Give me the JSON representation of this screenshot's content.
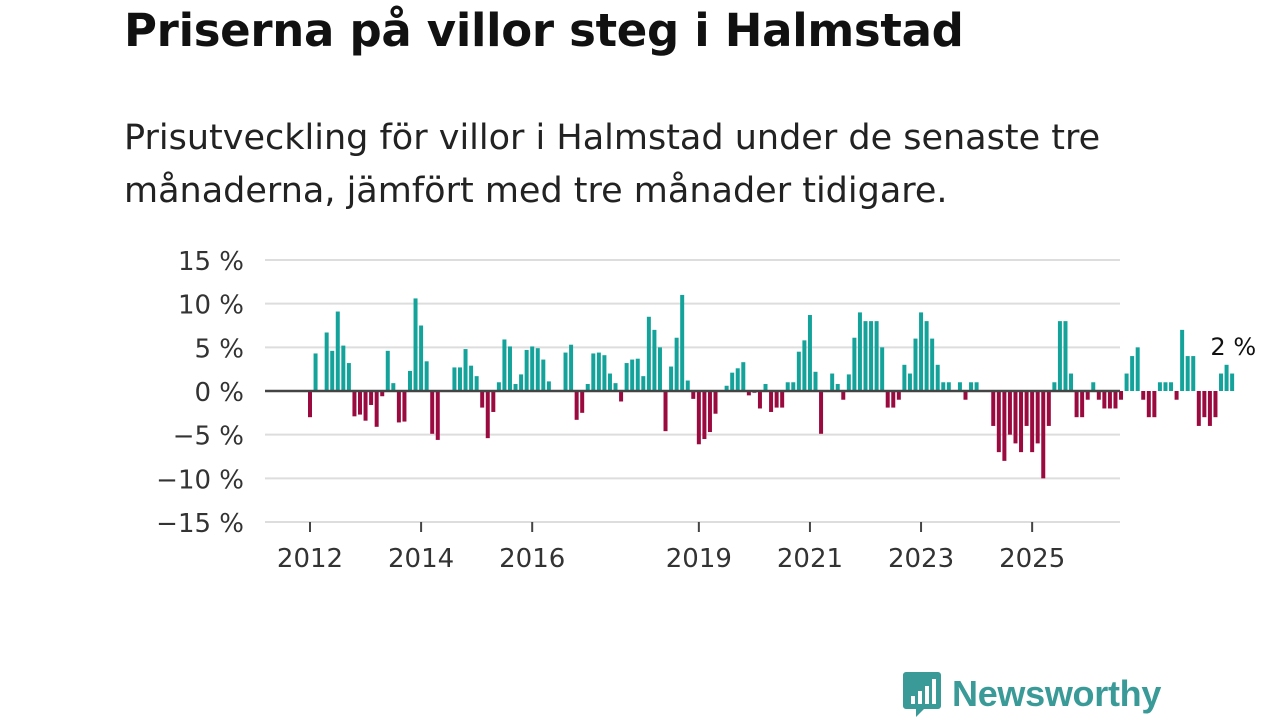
{
  "title": "Priserna på villor steg i Halmstad",
  "subtitle": "Prisutveckling för villor i Halmstad under de senaste tre månaderna, jämfört med tre månader tidigare.",
  "brand": {
    "name": "Newsworthy",
    "icon": "bar-chart-icon",
    "color": "#3a9a98"
  },
  "colors": {
    "positive": "#14a39b",
    "negative": "#9b0a3e",
    "zero_line": "#444444",
    "grid": "#dddddd"
  },
  "chart_data": {
    "type": "bar",
    "title": "Prisutveckling för villor i Halmstad",
    "xlabel": "",
    "ylabel": "",
    "ylim": [
      -15,
      15
    ],
    "y_ticks": [
      15,
      10,
      5,
      0,
      -5,
      -10,
      -15
    ],
    "y_tick_labels": [
      "15 %",
      "10 %",
      "5 %",
      "0 %",
      "−5 %",
      "−10 %",
      "−15 %"
    ],
    "x_ticks": [
      {
        "label": "2012",
        "index": 0
      },
      {
        "label": "2014",
        "index": 20
      },
      {
        "label": "2016",
        "index": 40
      },
      {
        "label": "2019",
        "index": 70
      },
      {
        "label": "2021",
        "index": 90
      },
      {
        "label": "2023",
        "index": 110
      },
      {
        "label": "2025",
        "index": 130
      }
    ],
    "end_label": "2 %",
    "grid": true,
    "series": [
      {
        "name": "Prisutveckling (%)",
        "start": "2012",
        "frequency": "monthly",
        "values": [
          -3,
          4.3,
          0,
          6.7,
          4.6,
          9.1,
          5.2,
          3.2,
          -2.9,
          -2.7,
          -3.4,
          -1.6,
          -4.1,
          -0.6,
          4.6,
          0.9,
          -3.6,
          -3.5,
          2.3,
          10.6,
          7.5,
          3.4,
          -4.9,
          -5.6,
          0,
          0,
          2.7,
          2.7,
          4.8,
          2.9,
          1.7,
          -1.9,
          -5.4,
          -2.4,
          1,
          5.9,
          5.1,
          0.8,
          1.9,
          4.7,
          5.1,
          4.9,
          3.6,
          1.1,
          0,
          0,
          4.4,
          5.3,
          -3.3,
          -2.5,
          0.8,
          4.3,
          4.4,
          4.1,
          2,
          0.9,
          -1.2,
          3.2,
          3.6,
          3.7,
          1.7,
          8.5,
          7,
          5,
          -4.6,
          2.8,
          6.1,
          11,
          1.2,
          -0.9,
          -6.1,
          -5.5,
          -4.7,
          -2.6,
          0,
          0.6,
          2.1,
          2.6,
          3.3,
          -0.5,
          -0.2,
          -2,
          0.8,
          -2.4,
          -1.9,
          -1.9,
          1,
          1,
          4.5,
          5.8,
          8.7,
          2.2,
          -4.9,
          0
        ]
      }
    ],
    "series_continued": [
      2,
      0.8,
      -1,
      1.9,
      6.1,
      9,
      8,
      8,
      8,
      5,
      -1.9,
      -1.9,
      -1,
      3,
      2,
      6,
      9,
      8,
      6,
      3,
      1,
      1,
      0,
      1,
      -1,
      1,
      1,
      0,
      0,
      -4,
      -7,
      -8,
      -5,
      -6,
      -7,
      -4,
      -7,
      -6,
      -10,
      -4,
      1,
      8,
      8,
      2,
      -3,
      -3,
      -1,
      1,
      -1,
      -2,
      -2,
      -2,
      -1,
      2,
      4,
      5,
      -1,
      -3,
      -3,
      1,
      1,
      1,
      -1,
      7,
      4,
      4,
      -4,
      -3,
      -4,
      -3,
      2,
      3,
      2
    ]
  }
}
